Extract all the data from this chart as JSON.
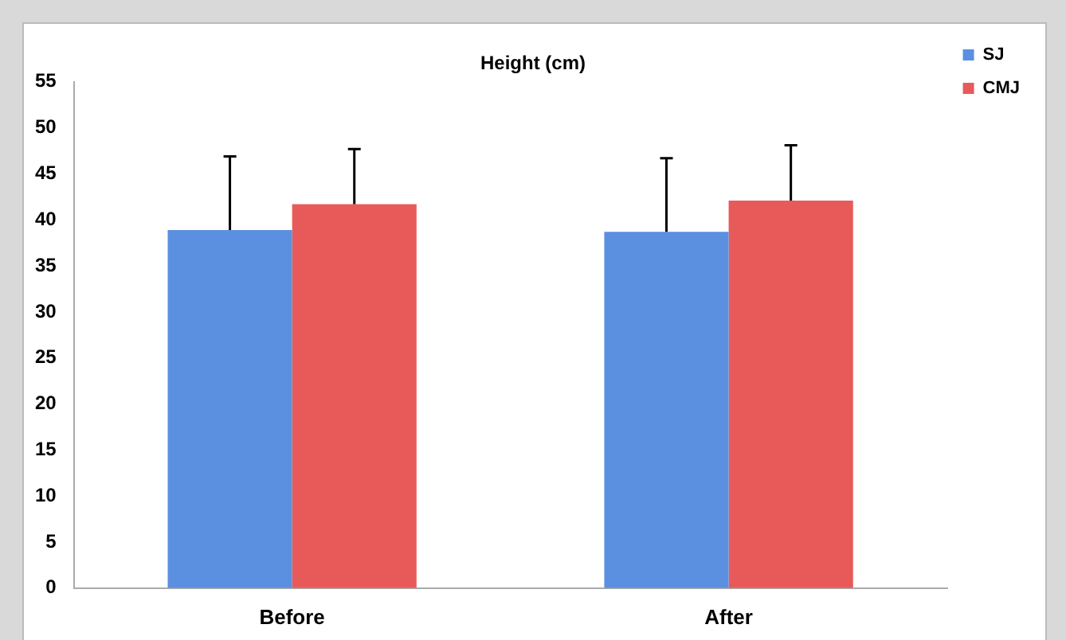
{
  "chart_data": {
    "type": "bar",
    "title": "Height (cm)",
    "categories": [
      "Before",
      "After"
    ],
    "series": [
      {
        "name": "SJ",
        "color": "#5b8fe0",
        "values": [
          38.9,
          38.7
        ],
        "errors": [
          [
            38.9,
            46.9
          ],
          [
            38.7,
            46.7
          ]
        ]
      },
      {
        "name": "CMJ",
        "color": "#e85a5a",
        "values": [
          41.7,
          42.1
        ],
        "errors": [
          [
            41.7,
            47.7
          ],
          [
            42.1,
            48.1
          ]
        ]
      }
    ],
    "ylim": [
      0,
      55
    ],
    "yticks": [
      0,
      5,
      10,
      15,
      20,
      25,
      30,
      35,
      40,
      45,
      50,
      55
    ],
    "grid": false,
    "legend": "top right"
  }
}
